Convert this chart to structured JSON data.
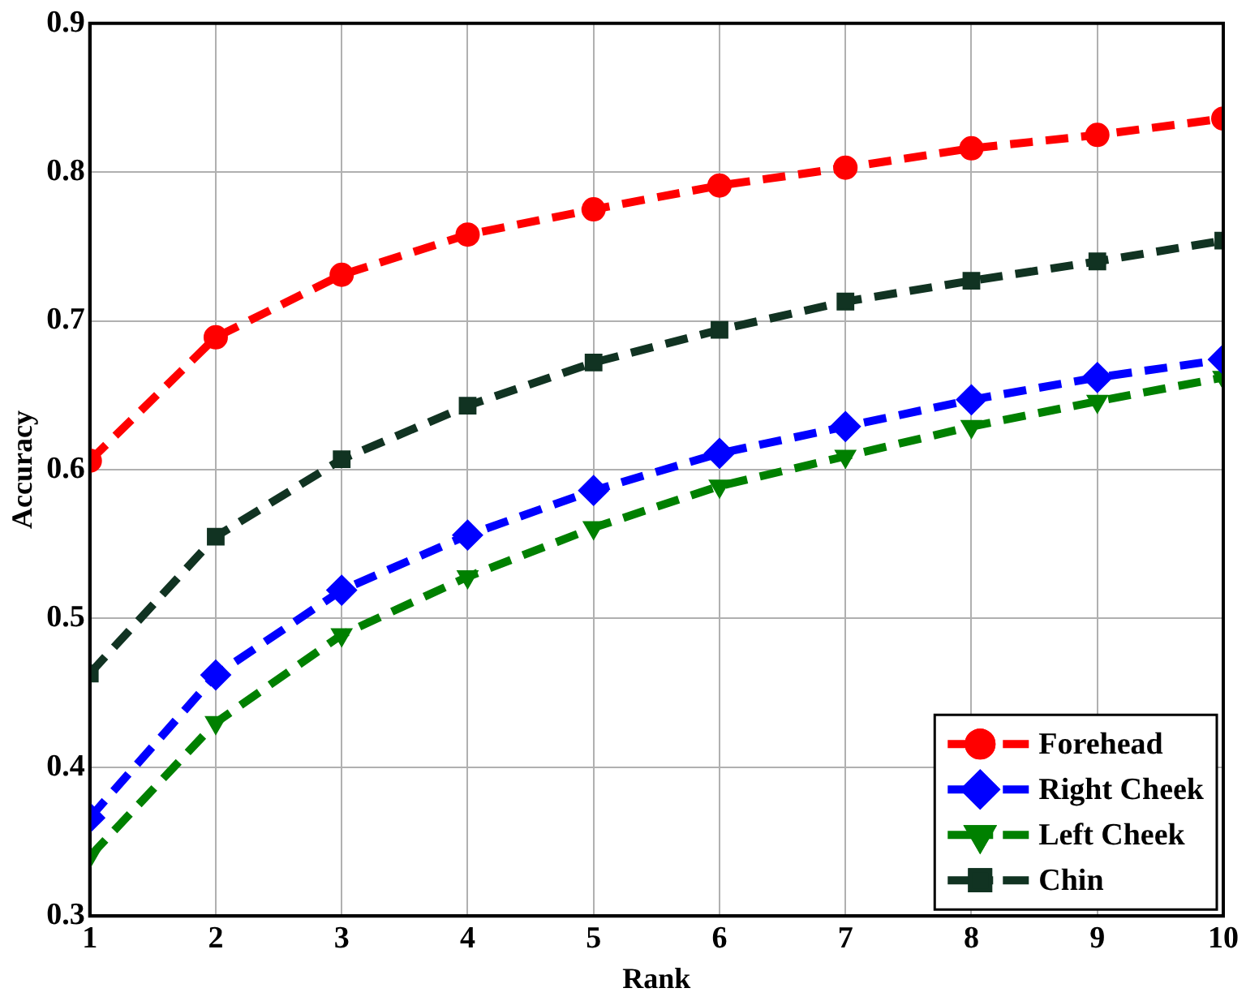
{
  "chart_data": {
    "type": "line",
    "xlabel": "Rank",
    "ylabel": "Accuracy",
    "x": [
      1,
      2,
      3,
      4,
      5,
      6,
      7,
      8,
      9,
      10
    ],
    "xlim": [
      1,
      10
    ],
    "xticks": [
      1,
      2,
      3,
      4,
      5,
      6,
      7,
      8,
      9,
      10
    ],
    "ylim": [
      0.3,
      0.9
    ],
    "yticks": [
      0.3,
      0.4,
      0.5,
      0.6,
      0.7,
      0.8,
      0.9
    ],
    "grid": true,
    "legend": "bottom right",
    "line_style": "dashed",
    "series": [
      {
        "name": "Forehead",
        "color": "#ff0000",
        "marker": "circle",
        "values": [
          0.606,
          0.689,
          0.731,
          0.758,
          0.775,
          0.791,
          0.803,
          0.816,
          0.825,
          0.836
        ]
      },
      {
        "name": "Right Cheek",
        "color": "#0000ff",
        "marker": "diamond",
        "values": [
          0.366,
          0.462,
          0.519,
          0.556,
          0.586,
          0.611,
          0.629,
          0.647,
          0.662,
          0.674
        ]
      },
      {
        "name": "Left Cheek",
        "color": "#008000",
        "marker": "triangle",
        "values": [
          0.34,
          0.43,
          0.489,
          0.528,
          0.561,
          0.589,
          0.609,
          0.629,
          0.646,
          0.662
        ]
      },
      {
        "name": "Chin",
        "color": "#113322",
        "marker": "square",
        "values": [
          0.463,
          0.555,
          0.607,
          0.643,
          0.672,
          0.694,
          0.713,
          0.727,
          0.74,
          0.754
        ]
      }
    ]
  }
}
